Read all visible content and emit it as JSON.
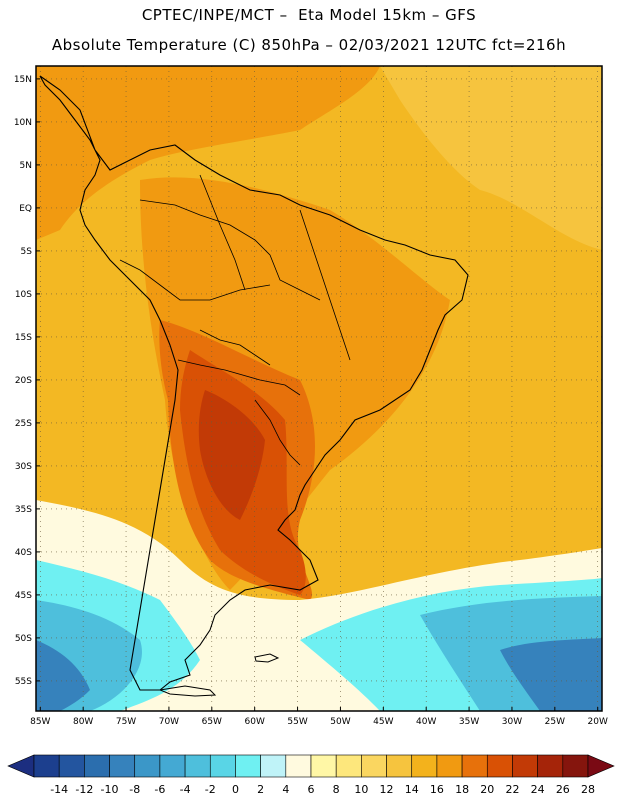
{
  "header": {
    "line1": "CPTEC/INPE/MCT –  Eta Model 15km – GFS",
    "line2": "Absolute Temperature (C) 850hPa – 02/03/2021 12UTC fct=216h"
  },
  "map": {
    "lon_range": [
      -85.5,
      -19.5
    ],
    "lat_range": [
      -58.5,
      16.5
    ],
    "lat_ticks": [
      {
        "value": 15,
        "label": "15N"
      },
      {
        "value": 10,
        "label": "10N"
      },
      {
        "value": 5,
        "label": "5N"
      },
      {
        "value": 0,
        "label": "EQ"
      },
      {
        "value": -5,
        "label": "5S"
      },
      {
        "value": -10,
        "label": "10S"
      },
      {
        "value": -15,
        "label": "15S"
      },
      {
        "value": -20,
        "label": "20S"
      },
      {
        "value": -25,
        "label": "25S"
      },
      {
        "value": -30,
        "label": "30S"
      },
      {
        "value": -35,
        "label": "35S"
      },
      {
        "value": -40,
        "label": "40S"
      },
      {
        "value": -45,
        "label": "45S"
      },
      {
        "value": -50,
        "label": "50S"
      },
      {
        "value": -55,
        "label": "55S"
      }
    ],
    "lon_ticks": [
      {
        "value": -85,
        "label": "85W"
      },
      {
        "value": -80,
        "label": "80W"
      },
      {
        "value": -75,
        "label": "75W"
      },
      {
        "value": -70,
        "label": "70W"
      },
      {
        "value": -65,
        "label": "65W"
      },
      {
        "value": -60,
        "label": "60W"
      },
      {
        "value": -55,
        "label": "55W"
      },
      {
        "value": -50,
        "label": "50W"
      },
      {
        "value": -45,
        "label": "45W"
      },
      {
        "value": -40,
        "label": "40W"
      },
      {
        "value": -35,
        "label": "35W"
      },
      {
        "value": -30,
        "label": "30W"
      },
      {
        "value": -25,
        "label": "25W"
      },
      {
        "value": -20,
        "label": "20W"
      }
    ]
  },
  "colorbar": {
    "labels": [
      "-14",
      "-12",
      "-10",
      "-8",
      "-6",
      "-4",
      "-2",
      "0",
      "2",
      "4",
      "6",
      "8",
      "10",
      "12",
      "14",
      "16",
      "18",
      "20",
      "22",
      "24",
      "26",
      "28"
    ],
    "colors": [
      "#1c3f8e",
      "#23559f",
      "#2b6eae",
      "#3682bc",
      "#3b97c8",
      "#44a9d3",
      "#4ebfdc",
      "#59d5e6",
      "#6ff0f2",
      "#bff3f8",
      "#fffadf",
      "#fff7a6",
      "#fde77c",
      "#fad660",
      "#f6c43e",
      "#f3b21c",
      "#f19a11",
      "#e7710b",
      "#d95105",
      "#c23a06",
      "#a52409",
      "#85150d"
    ],
    "under_color": "#1c2e80",
    "over_color": "#7a0a14"
  },
  "field": {
    "background_color": "#f3b823",
    "regions": [
      {
        "name": "caribbean-warm",
        "level": 18,
        "color": "#f19a11"
      },
      {
        "name": "atlantic-north",
        "level": 14,
        "color": "#f6c43e"
      },
      {
        "name": "continent-warm",
        "level": 18,
        "color": "#f19a11"
      },
      {
        "name": "chaco-hot",
        "level": 20,
        "color": "#e7710b"
      },
      {
        "name": "argentina-hot",
        "level": 22,
        "color": "#d95105"
      },
      {
        "name": "argentina-core",
        "level": 24,
        "color": "#c23a06"
      },
      {
        "name": "south-cool",
        "level": 6,
        "color": "#fffadf"
      },
      {
        "name": "south-cold",
        "level": 2,
        "color": "#6ff0f2"
      },
      {
        "name": "southern-ocean",
        "level": -2,
        "color": "#4ebfdc"
      },
      {
        "name": "southern-ocean-deep",
        "level": -8,
        "color": "#3682bc"
      }
    ]
  }
}
